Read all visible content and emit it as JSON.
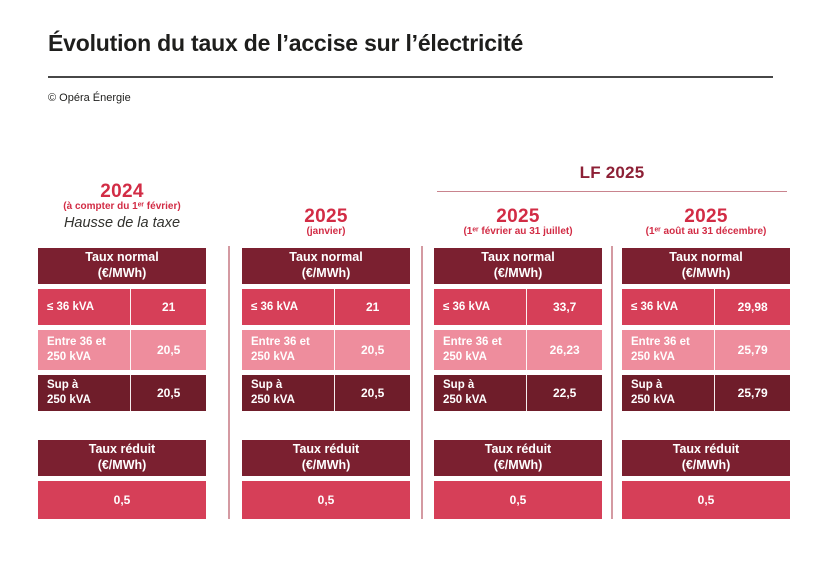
{
  "header": {
    "title": "Évolution du taux de l’accise sur l’électricité",
    "credit": "© Opéra Énergie"
  },
  "group_header": {
    "label": "LF 2025"
  },
  "colors": {
    "accent_red": "#d22c45",
    "lf_dark_red": "#8d2036",
    "maroon_header": "#7b2030",
    "crimson_row": "#d63f58",
    "pink_row": "#ee8d9d",
    "dark_row": "#6f1d2a",
    "divider_pink": "#d49aa2"
  },
  "columns": [
    {
      "year": "2024",
      "subtitle": "(à compter du 1ᵉʳ février)",
      "note": "Hausse de la taxe",
      "taux_normal": {
        "title": "Taux normal\n(€/MWh)",
        "rows": [
          {
            "label": "≤ 36 kVA",
            "value": "21"
          },
          {
            "label": "Entre 36 et\n250 kVA",
            "value": "20,5"
          },
          {
            "label": "Sup à\n250 kVA",
            "value": "20,5"
          }
        ]
      },
      "taux_reduit": {
        "title": "Taux réduit\n(€/MWh)",
        "value": "0,5"
      }
    },
    {
      "year": "2025",
      "subtitle": "(janvier)",
      "note": "",
      "taux_normal": {
        "title": "Taux normal\n(€/MWh)",
        "rows": [
          {
            "label": "≤ 36 kVA",
            "value": "21"
          },
          {
            "label": "Entre 36 et\n250 kVA",
            "value": "20,5"
          },
          {
            "label": "Sup à\n250 kVA",
            "value": "20,5"
          }
        ]
      },
      "taux_reduit": {
        "title": "Taux réduit\n(€/MWh)",
        "value": "0,5"
      }
    },
    {
      "year": "2025",
      "subtitle": "(1ᵉʳ février au 31 juillet)",
      "note": "",
      "taux_normal": {
        "title": "Taux normal\n(€/MWh)",
        "rows": [
          {
            "label": "≤ 36 kVA",
            "value": "33,7"
          },
          {
            "label": "Entre 36 et\n250 kVA",
            "value": "26,23"
          },
          {
            "label": "Sup à\n250 kVA",
            "value": "22,5"
          }
        ]
      },
      "taux_reduit": {
        "title": "Taux réduit\n(€/MWh)",
        "value": "0,5"
      }
    },
    {
      "year": "2025",
      "subtitle": "(1ᵉʳ août au 31 décembre)",
      "note": "",
      "taux_normal": {
        "title": "Taux normal\n(€/MWh)",
        "rows": [
          {
            "label": "≤ 36 kVA",
            "value": "29,98"
          },
          {
            "label": "Entre 36 et\n250 kVA",
            "value": "25,79"
          },
          {
            "label": "Sup à\n250 kVA",
            "value": "25,79"
          }
        ]
      },
      "taux_reduit": {
        "title": "Taux réduit\n(€/MWh)",
        "value": "0,5"
      }
    }
  ],
  "chart_data": {
    "type": "table",
    "title": "Évolution du taux de l’accise sur l’électricité",
    "unit": "€/MWh",
    "row_categories": [
      "≤ 36 kVA",
      "Entre 36 et 250 kVA",
      "Sup à 250 kVA",
      "Taux réduit"
    ],
    "periods": [
      {
        "period": "2024 (à compter du 1er février) — Hausse de la taxe",
        "taux_normal": [
          21,
          20.5,
          20.5
        ],
        "taux_reduit": 0.5
      },
      {
        "period": "2025 (janvier)",
        "taux_normal": [
          21,
          20.5,
          20.5
        ],
        "taux_reduit": 0.5
      },
      {
        "period": "LF 2025 — 2025 (1er février au 31 juillet)",
        "taux_normal": [
          33.7,
          26.23,
          22.5
        ],
        "taux_reduit": 0.5
      },
      {
        "period": "LF 2025 — 2025 (1er août au 31 décembre)",
        "taux_normal": [
          29.98,
          25.79,
          25.79
        ],
        "taux_reduit": 0.5
      }
    ]
  }
}
